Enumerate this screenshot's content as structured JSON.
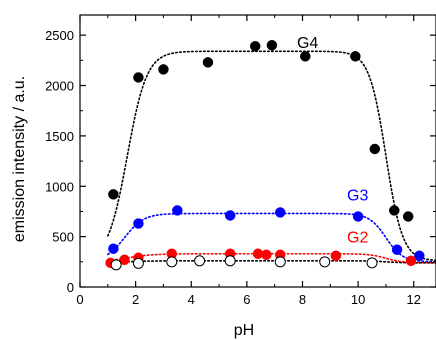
{
  "chart_data": {
    "type": "scatter",
    "xlabel": "pH",
    "ylabel": "emission intensity / a.u.",
    "xlim": [
      0,
      12.8
    ],
    "ylim": [
      0,
      2700
    ],
    "x_ticks": [
      0,
      2,
      4,
      6,
      8,
      10,
      12
    ],
    "y_ticks": [
      0,
      500,
      1000,
      1500,
      2000,
      2500
    ],
    "x_tick_labels": [
      "0",
      "2",
      "4",
      "6",
      "8",
      "10",
      "12"
    ],
    "y_tick_labels": [
      "0",
      "500",
      "1000",
      "1500",
      "2000",
      "2500"
    ],
    "grid": false,
    "legend": "none",
    "annotations": [
      {
        "text": "G4",
        "x": 7.8,
        "y": 2370,
        "color": "#000000"
      },
      {
        "text": "G3",
        "x": 9.6,
        "y": 860,
        "color": "#0000ff"
      },
      {
        "text": "G2",
        "x": 9.6,
        "y": 440,
        "color": "#ff0000"
      }
    ],
    "series": [
      {
        "color": "#000000",
        "marker": "filled-circle",
        "x": [
          1.2,
          2.1,
          3.0,
          4.6,
          6.3,
          6.9,
          8.1,
          9.9,
          10.6,
          11.3,
          11.8
        ],
        "y": [
          920,
          2080,
          2160,
          2230,
          2390,
          2400,
          2290,
          2290,
          1370,
          760,
          700
        ]
      },
      {
        "color": "#0000ff",
        "marker": "filled-circle",
        "x": [
          1.2,
          2.1,
          3.5,
          5.4,
          7.2,
          10.0,
          11.4,
          12.2
        ],
        "y": [
          380,
          630,
          760,
          710,
          740,
          700,
          370,
          310
        ]
      },
      {
        "color": "#ff0000",
        "marker": "filled-circle",
        "x": [
          1.1,
          1.6,
          2.1,
          3.3,
          5.4,
          6.4,
          6.7,
          7.2,
          9.2,
          11.9
        ],
        "y": [
          240,
          270,
          290,
          330,
          330,
          330,
          320,
          320,
          310,
          260
        ]
      },
      {
        "color": "#000000",
        "marker": "open-circle",
        "x": [
          1.3,
          2.1,
          3.3,
          4.3,
          5.4,
          7.2,
          8.8,
          10.5
        ],
        "y": [
          220,
          235,
          250,
          260,
          260,
          250,
          250,
          240
        ]
      }
    ],
    "fits": [
      {
        "color": "#000000",
        "base": 260,
        "plateau": 2340,
        "x_rise": 1.7,
        "x_fall": 11.0,
        "rise_width": 0.35,
        "fall_width": 0.3
      },
      {
        "color": "#0000ff",
        "base": 250,
        "plateau": 730,
        "x_rise": 1.6,
        "x_fall": 11.0,
        "rise_width": 0.35,
        "fall_width": 0.3
      },
      {
        "color": "#ff0000",
        "base": 240,
        "plateau": 330,
        "x_rise": 1.6,
        "x_fall": 11.0,
        "rise_width": 0.5,
        "fall_width": 0.3
      },
      {
        "color": "#000000",
        "base": 240,
        "plateau": 260,
        "x_rise": 1.6,
        "x_fall": 11.0,
        "rise_width": 0.5,
        "fall_width": 0.3
      }
    ]
  }
}
